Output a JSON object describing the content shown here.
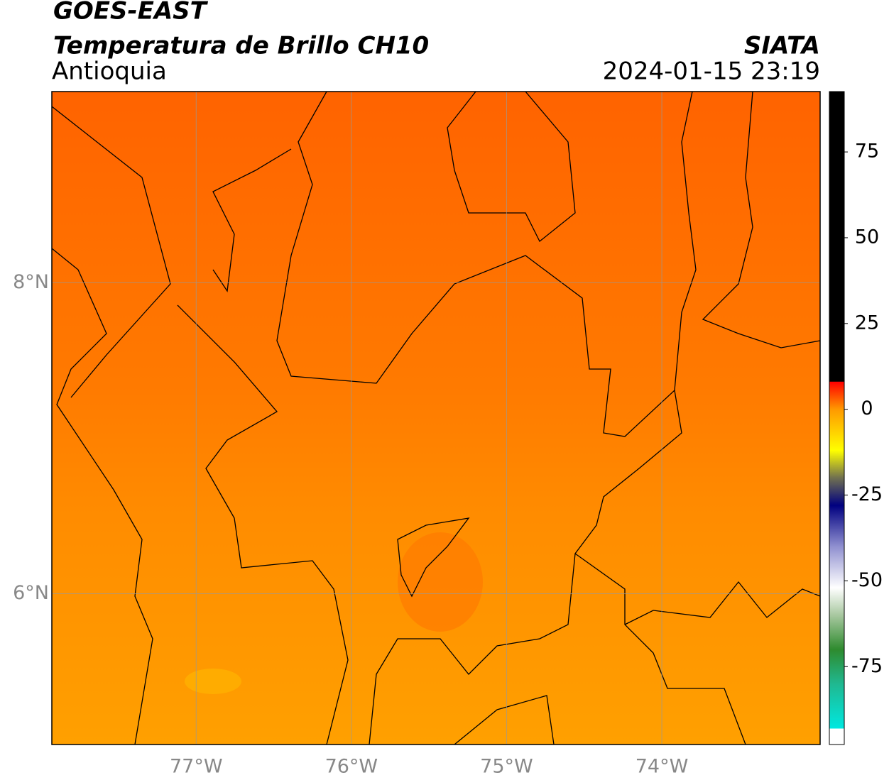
{
  "header": {
    "title": "GOES-EAST",
    "subtitle": "Temperatura de Brillo CH10",
    "region": "Antioquia",
    "source": "SIATA",
    "datetime": "2024-01-15 23:19"
  },
  "map": {
    "xlim": [
      -77.93,
      -72.98
    ],
    "ylim": [
      5.03,
      9.23
    ],
    "xticks": [
      {
        "value": -77,
        "label": "77°W"
      },
      {
        "value": -76,
        "label": "76°W"
      },
      {
        "value": -75,
        "label": "75°W"
      },
      {
        "value": -74,
        "label": "74°W"
      }
    ],
    "yticks": [
      {
        "value": 6,
        "label": "6°N"
      },
      {
        "value": 8,
        "label": "8°N"
      }
    ],
    "grid": true
  },
  "colorbar": {
    "lim": [
      -97.7,
      92.6
    ],
    "ticks": [
      -75,
      -50,
      -25,
      0,
      25,
      50,
      75
    ],
    "stops": [
      {
        "value": -97.7,
        "color": "#ffffff"
      },
      {
        "value": -93.1,
        "color": "#ffffff"
      },
      {
        "value": -93,
        "color": "#00e8e0"
      },
      {
        "value": -80,
        "color": "#20b890"
      },
      {
        "value": -70,
        "color": "#2e8b2e"
      },
      {
        "value": -60,
        "color": "#a8c8a0"
      },
      {
        "value": -52,
        "color": "#ffffff"
      },
      {
        "value": -40,
        "color": "#9090d0"
      },
      {
        "value": -28,
        "color": "#000080"
      },
      {
        "value": -20,
        "color": "#707050"
      },
      {
        "value": -12,
        "color": "#ffff00"
      },
      {
        "value": 0,
        "color": "#ff9900"
      },
      {
        "value": 8,
        "color": "#ff0000"
      },
      {
        "value": 8.1,
        "color": "#000000"
      },
      {
        "value": 92.6,
        "color": "#000000"
      }
    ]
  }
}
